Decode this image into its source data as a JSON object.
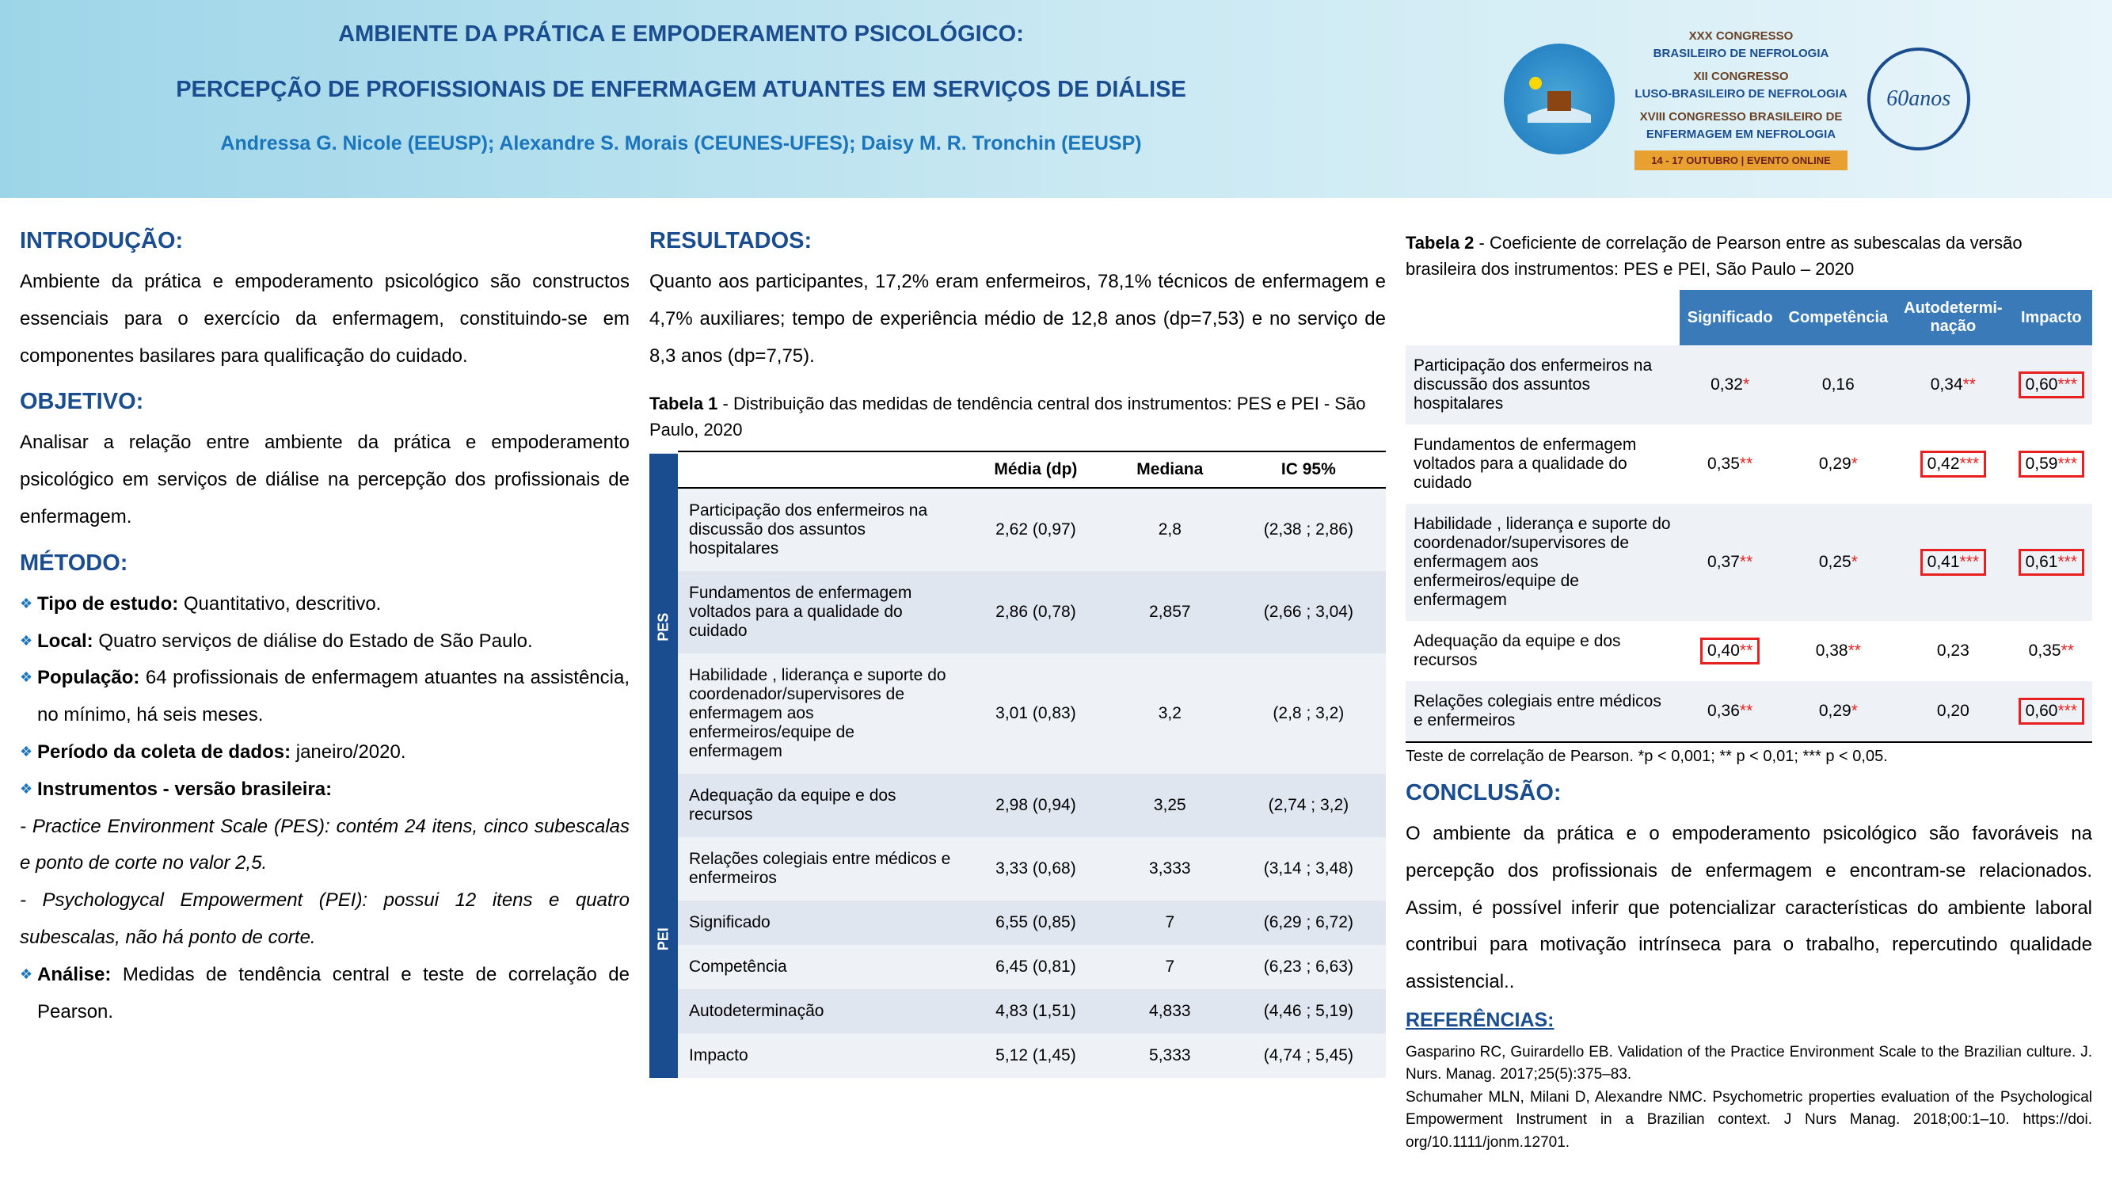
{
  "header": {
    "title1": "AMBIENTE DA PRÁTICA E EMPODERAMENTO PSICOLÓGICO:",
    "title2": "PERCEPÇÃO DE PROFISSIONAIS DE ENFERMAGEM ATUANTES EM SERVIÇOS DE DIÁLISE",
    "authors": "Andressa G. Nicole (EEUSP); Alexandre S. Morais (CEUNES-UFES); Daisy M. R. Tronchin (EEUSP)",
    "congress": {
      "l1a": "XXX CONGRESSO",
      "l1b": "BRASILEIRO DE NEFROLOGIA",
      "l2a": "XII CONGRESSO",
      "l2b": "LUSO-BRASILEIRO DE NEFROLOGIA",
      "l3a": "XVIII CONGRESSO BRASILEIRO DE",
      "l3b": "ENFERMAGEM EM NEFROLOGIA",
      "date": "14 - 17 OUTUBRO | EVENTO ONLINE"
    },
    "logo60": "60anos"
  },
  "intro": {
    "h": "INTRODUÇÃO:",
    "text": "Ambiente da prática e empoderamento psicológico são constructos essenciais para o exercício da enfermagem, constituindo-se em componentes basilares para qualificação do cuidado."
  },
  "obj": {
    "h": "OBJETIVO:",
    "text": "Analisar a relação entre ambiente da prática e empoderamento psicológico em serviços de diálise na percepção dos profissionais de enfermagem."
  },
  "met": {
    "h": "MÉTODO:",
    "b1l": "Tipo de estudo:",
    "b1t": " Quantitativo, descritivo.",
    "b2l": "Local:",
    "b2t": " Quatro serviços de diálise do Estado de São Paulo.",
    "b3l": "População:",
    "b3t": " 64 profissionais de enfermagem atuantes na assistência, no mínimo, há seis meses.",
    "b4l": "Período da coleta de dados:",
    "b4t": " janeiro/2020.",
    "b5l": "Instrumentos - versão brasileira:",
    "s1": "- Practice Environment Scale (PES): contém   24 itens, cinco subescalas e ponto de corte no      valor 2,5.",
    "s2": "- Psychologycal Empowerment (PEI): possui 12   itens e quatro subescalas, não há ponto de corte.",
    "b6l": "Análise:",
    "b6t": " Medidas de tendência central e teste de correlação de Pearson."
  },
  "res": {
    "h": "RESULTADOS:",
    "text": "Quanto aos participantes, 17,2% eram enfermeiros, 78,1% técnicos de enfermagem e 4,7% auxiliares; tempo de experiência médio de 12,8 anos (dp=7,53) e no serviço de 8,3 anos (dp=7,75)."
  },
  "t1": {
    "cap_b": "Tabela 1",
    "cap": " - Distribuição das medidas de tendência central dos instrumentos:   PES e PEI - São Paulo, 2020",
    "h1": "Média (dp)",
    "h2": "Mediana",
    "h3": "IC 95%",
    "side1": "PES",
    "side2": "PEI",
    "r1": {
      "n": "Participação dos enfermeiros na discussão dos assuntos hospitalares",
      "m": "2,62 (0,97)",
      "md": "2,8",
      "ic": "(2,38 ; 2,86)"
    },
    "r2": {
      "n": "Fundamentos de enfermagem voltados para a qualidade do cuidado",
      "m": "2,86 (0,78)",
      "md": "2,857",
      "ic": "(2,66 ; 3,04)"
    },
    "r3": {
      "n": "Habilidade , liderança e suporte do coordenador/supervisores de enfermagem aos enfermeiros/equipe de enfermagem",
      "m": "3,01 (0,83)",
      "md": "3,2",
      "ic": "(2,8 ; 3,2)"
    },
    "r4": {
      "n": "Adequação da equipe e dos recursos",
      "m": "2,98 (0,94)",
      "md": "3,25",
      "ic": "(2,74 ; 3,2)"
    },
    "r5": {
      "n": "Relações colegiais entre médicos e enfermeiros",
      "m": "3,33 (0,68)",
      "md": "3,333",
      "ic": "(3,14 ; 3,48)"
    },
    "r6": {
      "n": "Significado",
      "m": "6,55 (0,85)",
      "md": "7",
      "ic": "(6,29 ; 6,72)"
    },
    "r7": {
      "n": "Competência",
      "m": "6,45 (0,81)",
      "md": "7",
      "ic": "(6,23 ; 6,63)"
    },
    "r8": {
      "n": "Autodeterminação",
      "m": "4,83 (1,51)",
      "md": "4,833",
      "ic": "(4,46 ; 5,19)"
    },
    "r9": {
      "n": "Impacto",
      "m": "5,12 (1,45)",
      "md": "5,333",
      "ic": "(4,74 ; 5,45)"
    }
  },
  "t2": {
    "cap_b": "Tabela 2",
    "cap": " - Coeficiente de correlação de Pearson entre as subescalas da versão brasileira dos instrumentos: PES e PEI, São Paulo – 2020",
    "h1": "Significado",
    "h2": "Competência",
    "h3": "Autodetermi-nação",
    "h4": "Impacto",
    "r1": {
      "n": "Participação dos enfermeiros na discussão dos assuntos hospitalares",
      "c1": "0,32",
      "s1": "*",
      "c2": "0,16",
      "s2": "",
      "c3": "0,34",
      "s3": "**",
      "c4": "0,60",
      "s4": "***",
      "hl": [
        4
      ]
    },
    "r2": {
      "n": "Fundamentos de enfermagem voltados para a qualidade do cuidado",
      "c1": "0,35",
      "s1": "**",
      "c2": "0,29",
      "s2": "*",
      "c3": "0,42",
      "s3": "***",
      "c4": "0,59",
      "s4": "***",
      "hl": [
        3,
        4
      ]
    },
    "r3": {
      "n": "Habilidade , liderança e suporte do coordenador/supervisores de enfermagem aos enfermeiros/equipe de enfermagem",
      "c1": "0,37",
      "s1": "**",
      "c2": "0,25",
      "s2": "*",
      "c3": "0,41",
      "s3": "***",
      "c4": "0,61",
      "s4": "***",
      "hl": [
        3,
        4
      ]
    },
    "r4": {
      "n": "Adequação da equipe e dos recursos",
      "c1": "0,40",
      "s1": "**",
      "c2": "0,38",
      "s2": "**",
      "c3": "0,23",
      "s3": "",
      "c4": "0,35",
      "s4": "**",
      "hl": [
        1
      ]
    },
    "r5": {
      "n": "Relações colegiais entre médicos e enfermeiros",
      "c1": "0,36",
      "s1": "**",
      "c2": "0,29",
      "s2": "*",
      "c3": "0,20",
      "s3": "",
      "c4": "0,60",
      "s4": "***",
      "hl": [
        4
      ]
    },
    "foot": "Teste de correlação de Pearson. *p < 0,001; **  p  <  0,01; ***  p  <  0,05."
  },
  "conc": {
    "h": "CONCLUSÃO:",
    "text": "O ambiente da prática e o empoderamento psicológico são favoráveis na percepção dos profissionais de enfermagem e encontram-se relacionados. Assim, é possível inferir que potencializar características do ambiente laboral contribui para motivação intrínseca para o trabalho, repercutindo qualidade assistencial.."
  },
  "refs": {
    "h": "REFERÊNCIAS:",
    "r1": "Gasparino RC, Guirardello EB. Validation of the Practice Environment Scale to the Brazilian culture. J. Nurs. Manag. 2017;25(5):375–83.",
    "r2": "Schumaher MLN, Milani D, Alexandre NMC. Psychometric properties evaluation of the Psychological Empowerment Instrument in a Brazilian context. J Nurs Manag. 2018;00:1–10. https://doi. org/10.1111/jonm.12701."
  }
}
